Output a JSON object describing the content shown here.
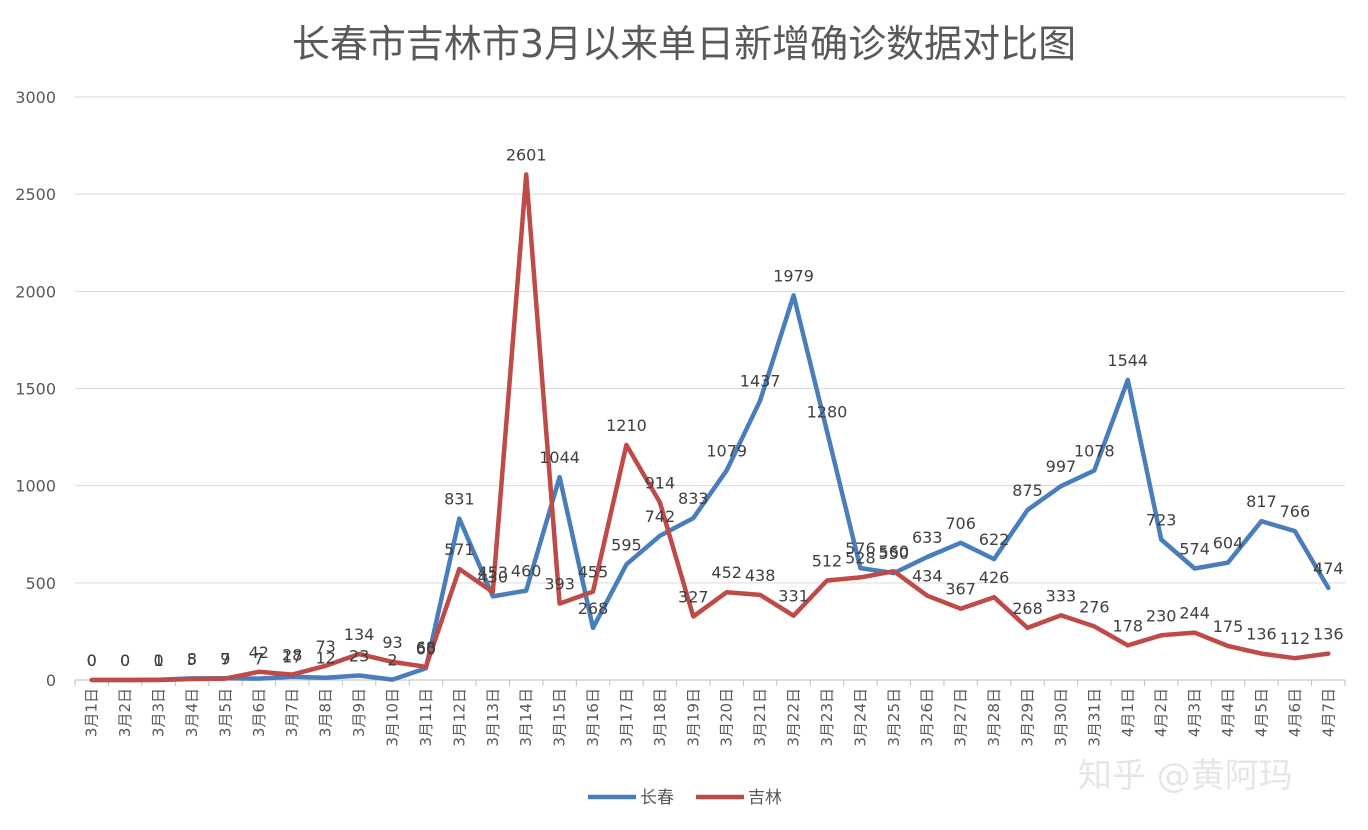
{
  "chart_data": {
    "type": "line",
    "title": "长春市吉林市3月以来单日新增确诊数据对比图",
    "xlabel": "",
    "ylabel": "",
    "ylim": [
      0,
      3000
    ],
    "yticks": [
      0,
      500,
      1000,
      1500,
      2000,
      2500,
      3000
    ],
    "grid": true,
    "legend_position": "bottom",
    "categories": [
      "3月1日",
      "3月2日",
      "3月3日",
      "3月4日",
      "3月5日",
      "3月6日",
      "3月7日",
      "3月8日",
      "3月9日",
      "3月10日",
      "3月11日",
      "3月12日",
      "3月13日",
      "3月14日",
      "3月15日",
      "3月16日",
      "3月17日",
      "3月18日",
      "3月19日",
      "3月20日",
      "3月21日",
      "3月22日",
      "3月23日",
      "3月24日",
      "3月25日",
      "3月26日",
      "3月27日",
      "3月28日",
      "3月29日",
      "3月30日",
      "3月31日",
      "4月1日",
      "4月2日",
      "4月3日",
      "4月4日",
      "4月5日",
      "4月6日",
      "4月7日"
    ],
    "series": [
      {
        "name": "长春",
        "color": "#4a7ebb",
        "values": [
          0,
          0,
          1,
          8,
          9,
          7,
          17,
          12,
          23,
          2,
          60,
          831,
          430,
          460,
          1044,
          268,
          595,
          742,
          833,
          1079,
          1437,
          1979,
          1280,
          576,
          550,
          633,
          706,
          622,
          875,
          997,
          1078,
          1544,
          723,
          574,
          604,
          817,
          766,
          474
        ]
      },
      {
        "name": "吉林",
        "color": "#be4b48",
        "values": [
          0,
          0,
          0,
          5,
          7,
          42,
          28,
          73,
          134,
          93,
          68,
          571,
          453,
          2601,
          393,
          455,
          1210,
          914,
          327,
          452,
          438,
          331,
          512,
          528,
          560,
          434,
          367,
          426,
          268,
          333,
          276,
          178,
          230,
          244,
          175,
          136,
          112,
          136
        ]
      }
    ],
    "watermark": "知乎 @黄阿玛"
  }
}
